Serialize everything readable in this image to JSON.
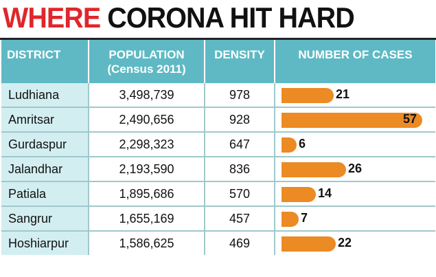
{
  "title": {
    "part1": "WHERE",
    "part2": "CORONA HIT HARD"
  },
  "colors": {
    "title_red": "#e0262b",
    "header_bg": "#5fb9c4",
    "district_bg": "#d3eef1",
    "bar": "#ec8a23"
  },
  "chart_data": {
    "type": "table",
    "title": "WHERE CORONA HIT HARD",
    "columns": [
      {
        "label": "DISTRICT"
      },
      {
        "label": "POPULATION",
        "sublabel": "(Census 2011)"
      },
      {
        "label": "DENSITY"
      },
      {
        "label": "NUMBER OF CASES"
      }
    ],
    "rows": [
      {
        "district": "Ludhiana",
        "population": "3,498,739",
        "density": "978",
        "cases": 21
      },
      {
        "district": "Amritsar",
        "population": "2,490,656",
        "density": "928",
        "cases": 57
      },
      {
        "district": "Gurdaspur",
        "population": "2,298,323",
        "density": "647",
        "cases": 6
      },
      {
        "district": "Jalandhar",
        "population": "2,193,590",
        "density": "836",
        "cases": 26
      },
      {
        "district": "Patiala",
        "population": "1,895,686",
        "density": "570",
        "cases": 14
      },
      {
        "district": "Sangrur",
        "population": "1,655,169",
        "density": "457",
        "cases": 7
      },
      {
        "district": "Hoshiarpur",
        "population": "1,586,625",
        "density": "469",
        "cases": 22
      }
    ],
    "cases_max": 57
  }
}
